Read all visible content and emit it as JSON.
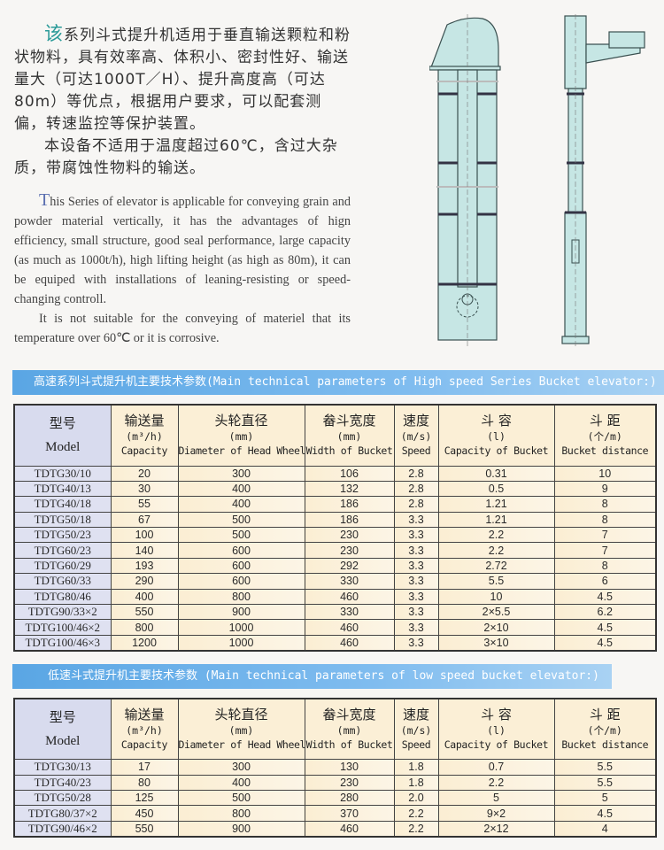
{
  "intro_cn": {
    "first_char": "该",
    "p1_rest": "系列斗式提升机适用于垂直输送颗粒和粉状物料，具有效率高、体积小、密封性好、输送量大（可达1000T／H）、提升高度高（可达80m）等优点，根据用户要求，可以配套测偏，转速监控等保护装置。",
    "p2": "本设备不适用于温度超过60℃，含过大杂质，带腐蚀性物料的输送。"
  },
  "intro_en": {
    "first_char": "T",
    "p1_rest": "his Series of elevator is applicable for conveying grain and powder material vertically, it has the advantages of hign efficiency, small structure, good seal performance, large capacity (as much as 1000t/h), high lifting height (as high as 80m), it can be equiped with installations of leaning-resisting or speed-changing controll.",
    "p2": "It is not suitable for the conveying of materiel that its temperature over 60℃ or it is corrosive."
  },
  "headers": [
    {
      "zh": "型号",
      "unit": "",
      "en": "Model"
    },
    {
      "zh": "输送量",
      "unit": "(m³/h)",
      "en": "Capacity"
    },
    {
      "zh": "头轮直径",
      "unit": "(mm)",
      "en": "Diameter of Head Wheel"
    },
    {
      "zh": "畚斗宽度",
      "unit": "(mm)",
      "en": "Width of Bucket"
    },
    {
      "zh": "速度",
      "unit": "(m/s)",
      "en": "Speed"
    },
    {
      "zh": "斗 容",
      "unit": "(l)",
      "en": "Capacity of Bucket"
    },
    {
      "zh": "斗 距",
      "unit": "(个/m)",
      "en": "Bucket distance"
    }
  ],
  "high_speed": {
    "title": "高速系列斗式提升机主要技术参数(Main technical parameters of High speed Series Bucket elevator:)",
    "rows": [
      [
        "TDTG30/10",
        "20",
        "300",
        "106",
        "2.8",
        "0.31",
        "10"
      ],
      [
        "TDTG40/13",
        "30",
        "400",
        "132",
        "2.8",
        "0.5",
        "9"
      ],
      [
        "TDTG40/18",
        "55",
        "400",
        "186",
        "2.8",
        "1.21",
        "8"
      ],
      [
        "TDTG50/18",
        "67",
        "500",
        "186",
        "3.3",
        "1.21",
        "8"
      ],
      [
        "TDTG50/23",
        "100",
        "500",
        "230",
        "3.3",
        "2.2",
        "7"
      ],
      [
        "TDTG60/23",
        "140",
        "600",
        "230",
        "3.3",
        "2.2",
        "7"
      ],
      [
        "TDTG60/29",
        "193",
        "600",
        "292",
        "3.3",
        "2.72",
        "8"
      ],
      [
        "TDTG60/33",
        "290",
        "600",
        "330",
        "3.3",
        "5.5",
        "6"
      ],
      [
        "TDTG80/46",
        "400",
        "800",
        "460",
        "3.3",
        "10",
        "4.5"
      ],
      [
        "TDTG90/33×2",
        "550",
        "900",
        "330",
        "3.3",
        "2×5.5",
        "6.2"
      ],
      [
        "TDTG100/46×2",
        "800",
        "1000",
        "460",
        "3.3",
        "2×10",
        "4.5"
      ],
      [
        "TDTG100/46×3",
        "1200",
        "1000",
        "460",
        "3.3",
        "3×10",
        "4.5"
      ]
    ]
  },
  "low_speed": {
    "title": "低速斗式提升机主要技术参数 (Main technical parameters of low speed bucket elevator:)",
    "rows": [
      [
        "TDTG30/13",
        "17",
        "300",
        "130",
        "1.8",
        "0.7",
        "5.5"
      ],
      [
        "TDTG40/23",
        "80",
        "400",
        "230",
        "1.8",
        "2.2",
        "5.5"
      ],
      [
        "TDTG50/28",
        "125",
        "500",
        "280",
        "2.0",
        "5",
        "5"
      ],
      [
        "TDTG80/37×2",
        "450",
        "800",
        "370",
        "2.2",
        "9×2",
        "4.5"
      ],
      [
        "TDTG90/46×2",
        "550",
        "900",
        "460",
        "2.2",
        "2×12",
        "4"
      ]
    ]
  },
  "colors": {
    "banner": "#5aa6e4",
    "machine": "#c6e6e4",
    "model_col": "#d8dbee",
    "cell": "#fbefd6"
  }
}
